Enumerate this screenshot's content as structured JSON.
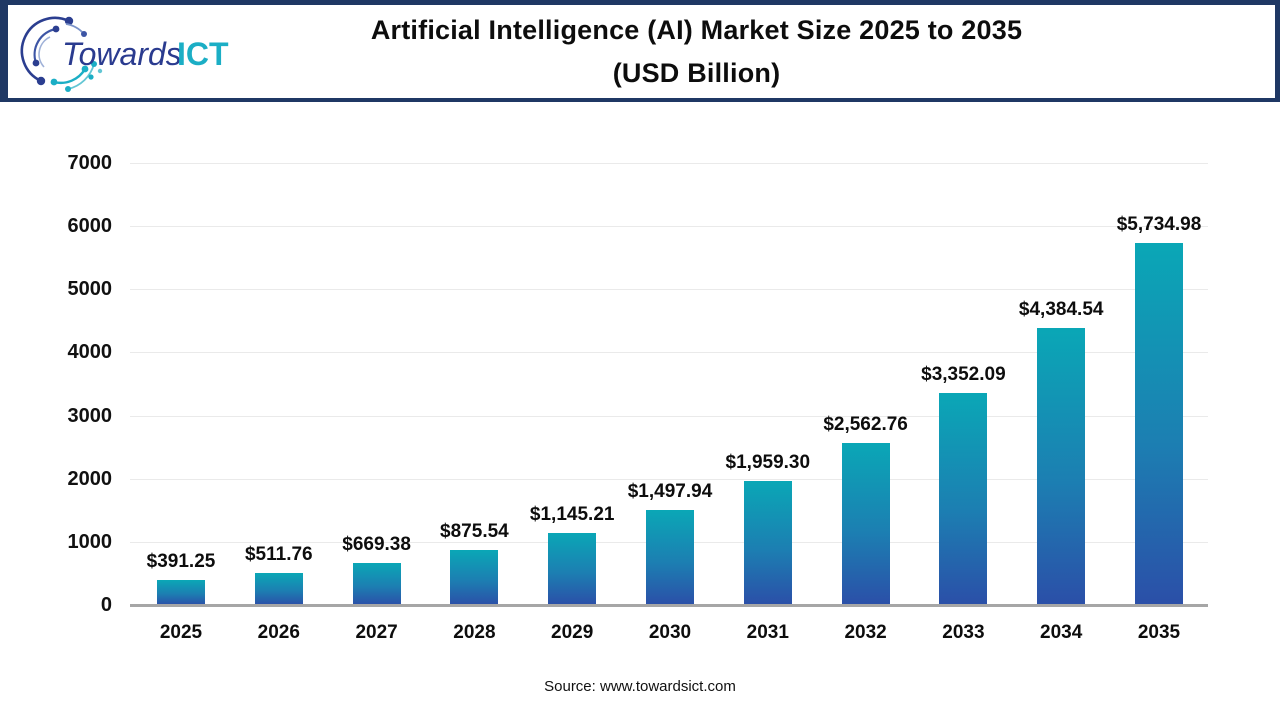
{
  "header": {
    "logo": {
      "brand_primary": "Towards",
      "brand_secondary": "ICT"
    },
    "title_line1": "Artificial Intelligence (AI) Market Size 2025 to 2035",
    "title_line2": "(USD Billion)"
  },
  "chart_data": {
    "type": "bar",
    "title": "Artificial Intelligence (AI) Market Size 2025 to 2035 (USD Billion)",
    "categories": [
      "2025",
      "2026",
      "2027",
      "2028",
      "2029",
      "2030",
      "2031",
      "2032",
      "2033",
      "2034",
      "2035"
    ],
    "values": [
      391.25,
      511.76,
      669.38,
      875.54,
      1145.21,
      1497.94,
      1959.3,
      2562.76,
      3352.09,
      4384.54,
      5734.98
    ],
    "value_labels": [
      "$391.25",
      "$511.76",
      "$669.38",
      "$875.54",
      "$1,145.21",
      "$1,497.94",
      "$1,959.30",
      "$2,562.76",
      "$3,352.09",
      "$4,384.54",
      "$5,734.98"
    ],
    "xlabel": "",
    "ylabel": "",
    "ylim": [
      0,
      7000
    ],
    "yticks": [
      0,
      1000,
      2000,
      3000,
      4000,
      5000,
      6000,
      7000
    ],
    "grid": true,
    "legend": "none"
  },
  "footer": {
    "source": "Source: www.towardsict.com"
  },
  "colors": {
    "header_border": "#1f3864",
    "bar_gradient_top": "#0aa7b6",
    "bar_gradient_bottom": "#2b4fa8",
    "gridline": "#eaeaea",
    "axis_baseline": "#a6a6a6",
    "logo_primary_text": "#2a3b8f",
    "logo_secondary_text": "#1baec5",
    "text": "#0d0d0d"
  }
}
